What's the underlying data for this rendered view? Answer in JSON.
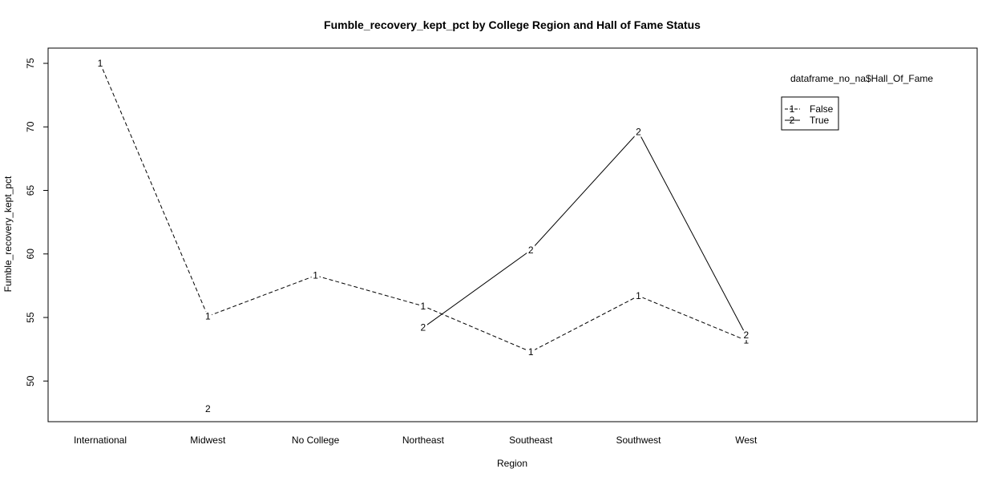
{
  "chart_data": {
    "type": "line",
    "title": "Fumble_recovery_kept_pct by College Region and Hall of Fame Status",
    "xlabel": "Region",
    "ylabel": "Fumble_recovery_kept_pct",
    "categories": [
      "International",
      "Midwest",
      "No College",
      "Northeast",
      "Southeast",
      "Southwest",
      "West"
    ],
    "yticks": [
      50,
      55,
      60,
      65,
      70,
      75
    ],
    "ylim": [
      46.8,
      76.2
    ],
    "grid": false,
    "legend": {
      "title": "dataframe_no_na$Hall_Of_Fame",
      "position": "top-right"
    },
    "series": [
      {
        "name": "False",
        "symbol": "1",
        "dash": "dashed",
        "values": [
          75.0,
          55.1,
          58.3,
          55.9,
          52.3,
          56.7,
          53.2
        ],
        "connected": [
          true,
          true,
          true,
          true,
          true,
          true,
          true
        ]
      },
      {
        "name": "True",
        "symbol": "2",
        "dash": "solid",
        "values": [
          null,
          47.8,
          null,
          54.2,
          60.3,
          69.6,
          53.6
        ],
        "connected": [
          false,
          false,
          false,
          true,
          true,
          true,
          true
        ]
      }
    ]
  }
}
